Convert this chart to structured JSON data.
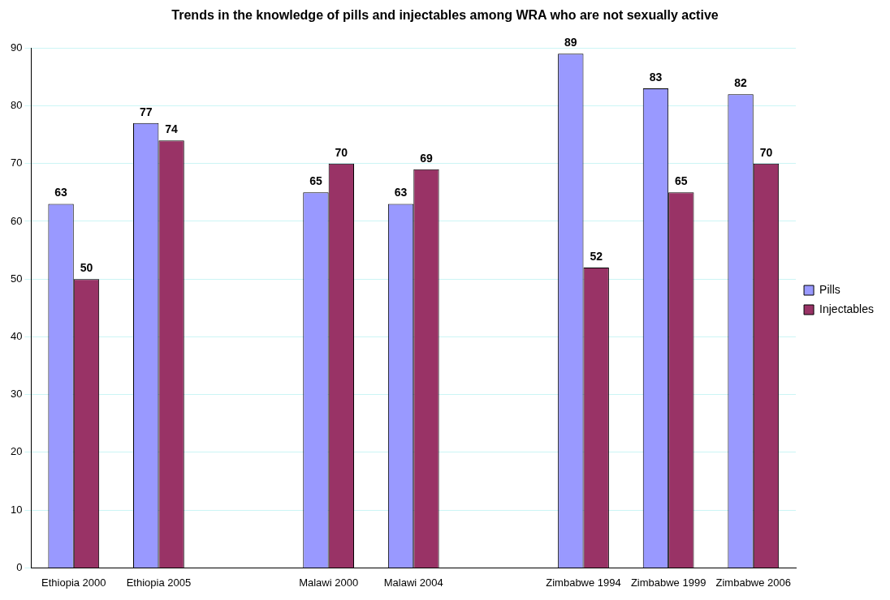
{
  "chart_data": {
    "type": "bar",
    "title": "Trends in the knowledge of pills and injectables among WRA who are not sexually active",
    "categories": [
      "Ethiopia 2000",
      "Ethiopia 2005",
      null,
      "Malawi 2000",
      "Malawi 2004",
      null,
      "Zimbabwe 1994",
      "Zimbabwe 1999",
      "Zimbabwe 2006"
    ],
    "series": [
      {
        "name": "Pills",
        "color": "#9999ff",
        "values": [
          63,
          77,
          null,
          65,
          63,
          null,
          89,
          83,
          82
        ]
      },
      {
        "name": "Injectables",
        "color": "#993366",
        "values": [
          50,
          74,
          null,
          70,
          69,
          null,
          52,
          65,
          70
        ]
      }
    ],
    "ylim": [
      0,
      90
    ],
    "yticks": [
      0,
      10,
      20,
      30,
      40,
      50,
      60,
      70,
      80,
      90
    ],
    "grid": "y",
    "legend": "right",
    "data_labels": true
  }
}
